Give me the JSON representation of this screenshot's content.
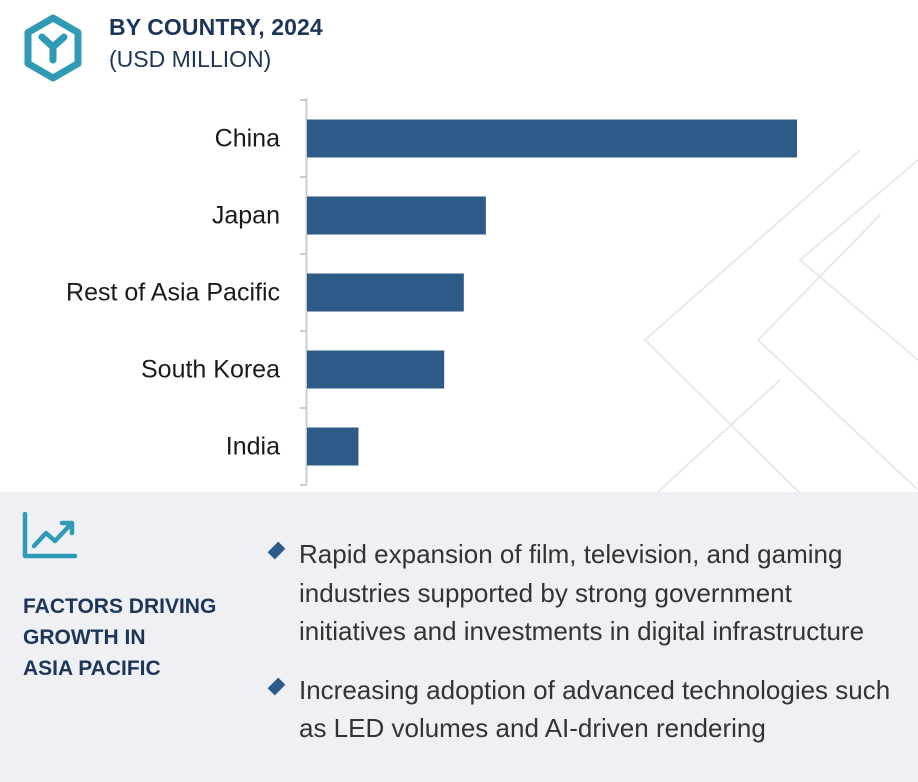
{
  "header": {
    "title": "BY COUNTRY, 2024",
    "subtitle": "(USD MILLION)",
    "logo_icon": "hexagon-y-logo-icon"
  },
  "chart_data": {
    "type": "bar",
    "orientation": "horizontal",
    "title": "BY COUNTRY, 2024",
    "subtitle": "(USD MILLION)",
    "categories": [
      "China",
      "Japan",
      "Rest of Asia Pacific",
      "South Korea",
      "India"
    ],
    "values": [
      100,
      36.5,
      32,
      28,
      10.5
    ],
    "xlim": [
      0,
      100
    ],
    "grid": false,
    "bar_color": "#2d5a87",
    "axis_color": "#cccccc"
  },
  "factors": {
    "title_lines": [
      "FACTORS DRIVING",
      "GROWTH IN",
      "ASIA PACIFIC"
    ],
    "icon": "trend-chart-icon",
    "bullet_icon": "diamond-bullet-icon",
    "items": [
      "Rapid expansion of film, television, and gaming industries supported by strong government initiatives and investments in digital infrastructure",
      "Increasing adoption of advanced technologies such as LED volumes and AI-driven rendering"
    ]
  },
  "colors": {
    "accent": "#2e9ab5",
    "heading": "#1d3557",
    "bar": "#2d5a87",
    "panel_background": "#eef0f4"
  }
}
